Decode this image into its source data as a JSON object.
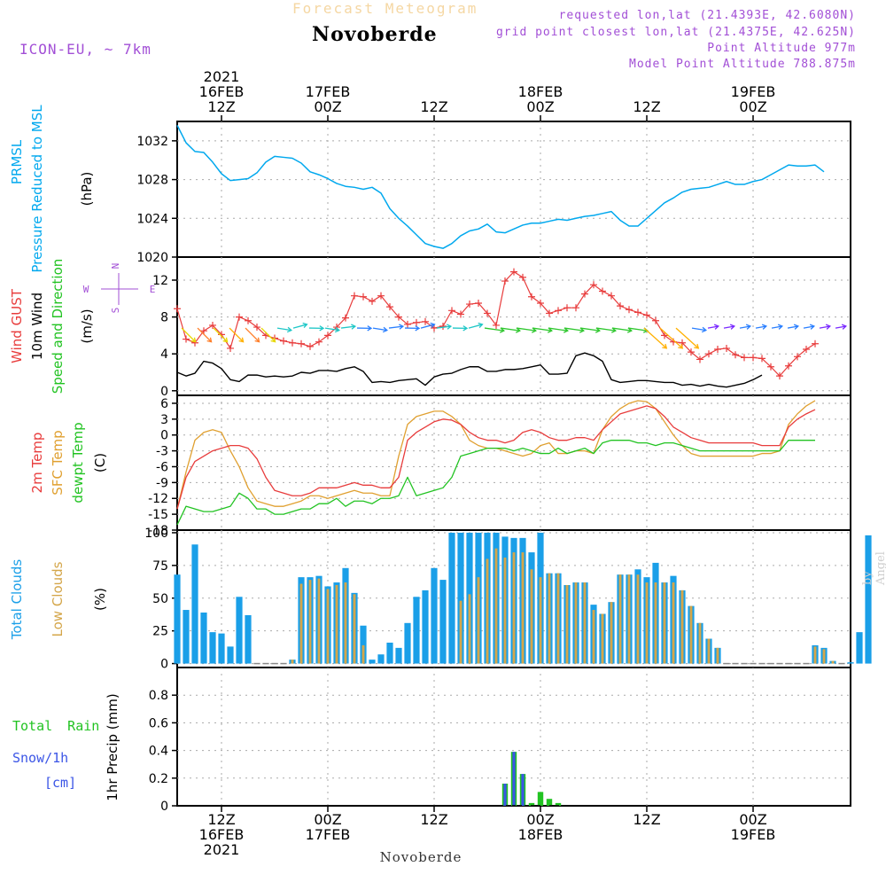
{
  "header": {
    "chart_title": "Forecast Meteogram",
    "location": "Novoberde",
    "model": "ICON-EU, ~ 7km",
    "requested": "requested lon,lat (21.4393E, 42.6080N)",
    "grid_point": "grid point closest lon,lat (21.4375E, 42.625N)",
    "point_altitude": "Point Altitude 977m",
    "model_altitude": "Model Point Altitude 788.875m",
    "credit": "by Angel"
  },
  "colors": {
    "pressure": "#00a8ee",
    "gust": "#e83c3c",
    "wind": "#000000",
    "temp2m": "#e83c3c",
    "sfc": "#e0a030",
    "dewpt": "#22c322",
    "total_clouds": "#1a9fe8",
    "low_clouds": "#d4a64a",
    "rain": "#22c322",
    "snow": "#3b55e6",
    "purple": "#a24fd6"
  },
  "time_axis": {
    "top_year": "2021",
    "ticks": [
      {
        "hour": 12,
        "top": [
          "16FEB",
          "12Z"
        ],
        "bottom": [
          "12Z",
          "16FEB",
          "2021"
        ]
      },
      {
        "hour": 24,
        "top": [
          "17FEB",
          "00Z"
        ],
        "bottom": [
          "00Z",
          "17FEB"
        ]
      },
      {
        "hour": 36,
        "top": [
          "12Z"
        ],
        "bottom": [
          "12Z"
        ]
      },
      {
        "hour": 48,
        "top": [
          "18FEB",
          "00Z"
        ],
        "bottom": [
          "00Z",
          "18FEB"
        ]
      },
      {
        "hour": 60,
        "top": [
          "12Z"
        ],
        "bottom": [
          "12Z"
        ]
      },
      {
        "hour": 72,
        "top": [
          "19FEB",
          "00Z"
        ],
        "bottom": [
          "00Z",
          "19FEB"
        ]
      }
    ],
    "bottom_label": "Novoberde"
  },
  "panels": {
    "pressure": {
      "labels": [
        "PRMSL",
        "Pressure Reduced to MSL"
      ],
      "unit": "(hPa)"
    },
    "wind": {
      "labels": [
        "Wind GUST",
        "10m Wind",
        "Speed and Direction"
      ],
      "unit": "(m/s)",
      "compass": {
        "n": "N",
        "s": "S",
        "w": "W",
        "e": "E"
      }
    },
    "temp": {
      "labels": [
        "2m Temp",
        "SFC Temp",
        "dewpt Temp"
      ],
      "unit": "(C)"
    },
    "clouds": {
      "labels": [
        "Total Clouds",
        "Low Clouds"
      ],
      "unit": "(%)"
    },
    "precip": {
      "labels": [
        "Total Rain",
        "Snow/1h",
        "[cm]"
      ],
      "unit": "1hr Precip (mm)"
    }
  },
  "chart_data": [
    {
      "type": "line",
      "x_unit": "hour",
      "x_start": 7,
      "x_step": 1,
      "xlim": [
        7,
        83
      ],
      "ylabel": "(hPa)",
      "ylim": [
        1020,
        1034
      ],
      "yticks": [
        1020,
        1024,
        1028,
        1032
      ],
      "series": [
        {
          "name": "PRMSL",
          "values": [
            1033.6,
            1031.8,
            1030.9,
            1030.8,
            1029.8,
            1028.6,
            1027.9,
            1028.0,
            1028.1,
            1028.7,
            1029.8,
            1030.4,
            1030.3,
            1030.2,
            1029.7,
            1028.8,
            1028.5,
            1028.1,
            1027.6,
            1027.3,
            1027.2,
            1027.0,
            1027.2,
            1026.6,
            1025.0,
            1024.0,
            1023.2,
            1022.3,
            1021.4,
            1021.1,
            1020.9,
            1021.4,
            1022.2,
            1022.7,
            1022.9,
            1023.4,
            1022.6,
            1022.5,
            1022.9,
            1023.3,
            1023.5,
            1023.5,
            1023.7,
            1023.9,
            1023.8,
            1024.0,
            1024.2,
            1024.3,
            1024.5,
            1024.7,
            1023.8,
            1023.2,
            1023.2,
            1024.0,
            1024.8,
            1025.6,
            1026.1,
            1026.7,
            1027.0,
            1027.1,
            1027.2,
            1027.5,
            1027.8,
            1027.5,
            1027.5,
            1027.8,
            1028.0,
            1028.5,
            1029.0,
            1029.5,
            1029.4,
            1029.4,
            1029.5,
            1028.8
          ]
        }
      ]
    },
    {
      "type": "line",
      "x_unit": "hour",
      "x_start": 7,
      "x_step": 1,
      "xlim": [
        7,
        83
      ],
      "ylabel": "(m/s)",
      "ylim": [
        -0.5,
        14.5
      ],
      "yticks": [
        0,
        4,
        8,
        12
      ],
      "series": [
        {
          "name": "Wind GUST",
          "markers": "+",
          "values": [
            8.9,
            5.6,
            5.2,
            6.5,
            7.1,
            6.1,
            4.6,
            8.0,
            7.6,
            6.9,
            6.0,
            5.7,
            5.4,
            5.2,
            5.1,
            4.8,
            5.3,
            6.0,
            6.9,
            7.9,
            10.3,
            10.2,
            9.7,
            10.3,
            9.1,
            8.0,
            7.2,
            7.4,
            7.5,
            6.8,
            7.0,
            8.7,
            8.3,
            9.4,
            9.5,
            8.4,
            7.1,
            11.9,
            12.9,
            12.3,
            10.2,
            9.5,
            8.4,
            8.7,
            9.0,
            9.0,
            10.5,
            11.5,
            10.8,
            10.3,
            9.2,
            8.8,
            8.5,
            8.2,
            7.6,
            6.0,
            5.3,
            5.2,
            4.2,
            3.4,
            4.0,
            4.5,
            4.6,
            3.9,
            3.6,
            3.6,
            3.5,
            2.6,
            1.6,
            2.7,
            3.7,
            4.5,
            5.1
          ]
        },
        {
          "name": "10m Wind",
          "values": [
            2.0,
            1.6,
            1.9,
            3.2,
            3.0,
            2.4,
            1.2,
            1.0,
            1.7,
            1.7,
            1.5,
            1.6,
            1.5,
            1.6,
            2.0,
            1.9,
            2.2,
            2.2,
            2.1,
            2.4,
            2.6,
            2.1,
            0.9,
            1.0,
            0.9,
            1.1,
            1.2,
            1.3,
            0.6,
            1.5,
            1.8,
            1.9,
            2.3,
            2.6,
            2.6,
            2.1,
            2.1,
            2.3,
            2.3,
            2.4,
            2.6,
            2.8,
            1.8,
            1.8,
            1.9,
            3.8,
            4.1,
            3.8,
            3.2,
            1.2,
            0.9,
            1.0,
            1.1,
            1.1,
            1.0,
            0.9,
            0.9,
            0.6,
            0.7,
            0.5,
            0.7,
            0.5,
            0.4,
            0.6,
            0.8,
            1.2,
            1.7
          ]
        }
      ]
    },
    {
      "type": "line",
      "x_unit": "hour",
      "x_start": 7,
      "x_step": 1,
      "xlim": [
        7,
        83
      ],
      "ylabel": "(C)",
      "ylim": [
        -18,
        7.5
      ],
      "yticks": [
        -18,
        -15,
        -12,
        -9,
        -6,
        -3,
        0,
        3,
        6
      ],
      "series": [
        {
          "name": "2m Temp",
          "values": [
            -14.0,
            -8.0,
            -5.0,
            -4.0,
            -3.0,
            -2.5,
            -2.0,
            -2.0,
            -2.5,
            -4.5,
            -8.0,
            -10.5,
            -11.0,
            -11.5,
            -11.5,
            -11.0,
            -10.0,
            -10.0,
            -10.0,
            -9.5,
            -9.0,
            -9.5,
            -9.5,
            -10.0,
            -10.0,
            -8.0,
            -1.0,
            0.5,
            1.5,
            2.5,
            3.0,
            2.8,
            2.0,
            0.5,
            -0.5,
            -1.0,
            -1.0,
            -1.5,
            -1.0,
            0.5,
            1.0,
            0.5,
            -0.5,
            -1.0,
            -1.0,
            -0.5,
            -0.5,
            -1.0,
            1.0,
            2.5,
            4.0,
            4.5,
            5.0,
            5.5,
            5.0,
            3.5,
            1.5,
            0.5,
            -0.5,
            -1.0,
            -1.5,
            -1.5,
            -1.5,
            -1.5,
            -1.5,
            -1.5,
            -2.0,
            -2.0,
            -2.0,
            1.5,
            3.0,
            4.0,
            4.8
          ]
        },
        {
          "name": "SFC Temp",
          "values": [
            -14.0,
            -7.0,
            -1.0,
            0.5,
            1.0,
            0.5,
            -3.0,
            -6.0,
            -10.0,
            -12.5,
            -13.0,
            -13.5,
            -13.5,
            -13.0,
            -12.5,
            -11.5,
            -11.5,
            -12.0,
            -11.5,
            -11.0,
            -10.5,
            -11.0,
            -11.0,
            -11.5,
            -11.5,
            -4.0,
            2.0,
            3.5,
            4.0,
            4.5,
            4.5,
            3.5,
            2.0,
            -1.0,
            -2.0,
            -2.5,
            -2.5,
            -3.0,
            -3.5,
            -4.0,
            -3.5,
            -2.0,
            -1.5,
            -3.5,
            -3.5,
            -3.0,
            -3.0,
            -3.5,
            1.0,
            3.5,
            5.0,
            6.0,
            6.5,
            6.3,
            5.0,
            2.5,
            0.0,
            -2.0,
            -3.5,
            -4.0,
            -4.0,
            -4.0,
            -4.0,
            -4.0,
            -4.0,
            -4.0,
            -3.5,
            -3.5,
            -3.0,
            2.0,
            4.0,
            5.5,
            6.5
          ]
        },
        {
          "name": "dewpt Temp",
          "values": [
            -17.0,
            -13.5,
            -14.0,
            -14.5,
            -14.5,
            -14.0,
            -13.5,
            -11.0,
            -12.0,
            -14.0,
            -14.0,
            -15.0,
            -15.0,
            -14.5,
            -14.0,
            -14.0,
            -13.0,
            -13.0,
            -12.0,
            -13.5,
            -12.5,
            -12.5,
            -13.0,
            -12.0,
            -12.0,
            -11.5,
            -8.0,
            -11.5,
            -11.0,
            -10.5,
            -10.0,
            -8.0,
            -4.0,
            -3.5,
            -3.0,
            -2.5,
            -2.5,
            -2.5,
            -3.0,
            -2.5,
            -3.0,
            -3.5,
            -3.5,
            -2.5,
            -3.5,
            -3.0,
            -2.5,
            -3.5,
            -1.5,
            -1.0,
            -1.0,
            -1.0,
            -1.5,
            -1.5,
            -2.0,
            -1.5,
            -1.5,
            -2.0,
            -2.5,
            -3.0,
            -3.0,
            -3.0,
            -3.0,
            -3.0,
            -3.0,
            -3.0,
            -3.0,
            -3.0,
            -3.0,
            -1.0,
            -1.0,
            -1.0,
            -1.0
          ]
        }
      ]
    },
    {
      "type": "bar",
      "x_unit": "hour",
      "x_start": 7,
      "x_step": 1,
      "xlim": [
        7,
        83
      ],
      "ylabel": "(%)",
      "ylim": [
        -3,
        102
      ],
      "yticks": [
        0,
        25,
        50,
        75,
        100
      ],
      "series": [
        {
          "name": "Total Clouds",
          "values": [
            68,
            41,
            91,
            39,
            24,
            23,
            13,
            51,
            37,
            0,
            0,
            0,
            0,
            3,
            66,
            66,
            67,
            59,
            62,
            73,
            54,
            29,
            3,
            7,
            16,
            12,
            31,
            51,
            56,
            73,
            64,
            100,
            100,
            100,
            100,
            100,
            100,
            97,
            96,
            96,
            85,
            100,
            69,
            69,
            60,
            62,
            62,
            45,
            38,
            47,
            68,
            68,
            72,
            66,
            77,
            62,
            67,
            56,
            44,
            31,
            19,
            12,
            0,
            0,
            0,
            0,
            0,
            0,
            0,
            0,
            0,
            0,
            14,
            12,
            2,
            0,
            1,
            24,
            98
          ]
        },
        {
          "name": "Low Clouds",
          "values": [
            0,
            0,
            0,
            0,
            0,
            0,
            0,
            0,
            0,
            0,
            0,
            0,
            0,
            3,
            61,
            64,
            65,
            57,
            60,
            62,
            53,
            14,
            0,
            0,
            0,
            0,
            0,
            0,
            0,
            0,
            0,
            0,
            48,
            53,
            66,
            80,
            88,
            81,
            85,
            85,
            72,
            66,
            69,
            69,
            60,
            62,
            62,
            41,
            38,
            47,
            68,
            68,
            68,
            62,
            62,
            62,
            62,
            56,
            44,
            31,
            19,
            12,
            0,
            0,
            0,
            0,
            0,
            0,
            0,
            0,
            0,
            0,
            13,
            11,
            2,
            0,
            0,
            0,
            0
          ]
        }
      ]
    },
    {
      "type": "bar",
      "x_unit": "hour",
      "x_start": 7,
      "x_step": 1,
      "xlim": [
        7,
        83
      ],
      "ylabel": "1hr Precip (mm)",
      "ylim": [
        0,
        1.0
      ],
      "yticks": [
        0,
        0.2,
        0.4,
        0.6,
        0.8
      ],
      "series": [
        {
          "name": "Total Rain",
          "values": [
            0,
            0,
            0,
            0,
            0,
            0,
            0,
            0,
            0,
            0,
            0,
            0,
            0,
            0,
            0,
            0,
            0,
            0,
            0,
            0,
            0,
            0,
            0,
            0,
            0,
            0,
            0,
            0,
            0,
            0,
            0,
            0,
            0,
            0,
            0,
            0,
            0,
            0.16,
            0.39,
            0.23,
            0.02,
            0.1,
            0.05,
            0.02,
            0,
            0,
            0,
            0,
            0,
            0,
            0,
            0,
            0,
            0,
            0,
            0,
            0,
            0,
            0,
            0,
            0,
            0,
            0,
            0,
            0,
            0,
            0,
            0,
            0,
            0,
            0,
            0,
            0,
            0,
            0,
            0,
            0
          ]
        },
        {
          "name": "Snow/1h",
          "values": [
            0,
            0,
            0,
            0,
            0,
            0,
            0,
            0,
            0,
            0,
            0,
            0,
            0,
            0,
            0,
            0,
            0,
            0,
            0,
            0,
            0,
            0,
            0,
            0,
            0,
            0,
            0,
            0,
            0,
            0,
            0,
            0,
            0,
            0,
            0,
            0,
            0,
            0.16,
            0.39,
            0.23,
            0,
            0,
            0,
            0,
            0,
            0,
            0,
            0,
            0,
            0,
            0,
            0,
            0,
            0,
            0,
            0,
            0,
            0,
            0,
            0,
            0,
            0,
            0,
            0,
            0,
            0,
            0,
            0,
            0,
            0,
            0,
            0,
            0,
            0,
            0,
            0,
            0
          ]
        }
      ]
    }
  ]
}
